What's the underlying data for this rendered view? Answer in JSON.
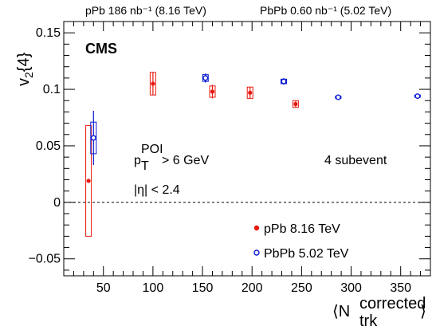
{
  "header": {
    "lumi_left": "pPb 186 nb⁻¹ (8.16 TeV)",
    "lumi_right": "PbPb 0.60 nb⁻¹ (5.02 TeV)",
    "experiment": "CMS"
  },
  "annotations": {
    "pt_main": "p",
    "pt_sub": "T",
    "pt_sup": "POI",
    "pt_rest": " > 6 GeV",
    "eta": "|η| < 2.4",
    "subevent": "4 subevent"
  },
  "colors": {
    "ppb": "#e8190f",
    "pbpb": "#0a1ad2",
    "axis": "#000000"
  },
  "chart_data": {
    "type": "scatter",
    "xlabel": "⟨N_trk^corrected⟩",
    "ylabel": "v2{4}",
    "xlim": [
      10,
      380
    ],
    "ylim": [
      -0.065,
      0.16
    ],
    "x_ticks": [
      50,
      100,
      150,
      200,
      250,
      300,
      350
    ],
    "y_ticks": [
      -0.05,
      0,
      0.05,
      0.1,
      0.15
    ],
    "y_tick_labels": [
      "−0.05",
      "0",
      "0.05",
      "0.1",
      "0.15"
    ],
    "zero_line": true,
    "legend_position": "bottom-right",
    "series": [
      {
        "name": "pPb 8.16 TeV",
        "marker": "filled-circle",
        "color": "#e8190f",
        "points": [
          {
            "x": 35,
            "y": 0.019,
            "stat": 0.0,
            "sys": 0.049
          },
          {
            "x": 100,
            "y": 0.105,
            "stat": 0.01,
            "sys": 0.01
          },
          {
            "x": 160,
            "y": 0.098,
            "stat": 0.006,
            "sys": 0.005
          },
          {
            "x": 198,
            "y": 0.097,
            "stat": 0.005,
            "sys": 0.005
          },
          {
            "x": 244,
            "y": 0.087,
            "stat": 0.003,
            "sys": 0.003
          }
        ]
      },
      {
        "name": "PbPb 5.02 TeV",
        "marker": "open-circle",
        "color": "#0a1ad2",
        "points": [
          {
            "x": 40,
            "y": 0.057,
            "stat": 0.024,
            "sys": 0.014
          },
          {
            "x": 153,
            "y": 0.11,
            "stat": 0.004,
            "sys": 0.003
          },
          {
            "x": 232,
            "y": 0.107,
            "stat": 0.003,
            "sys": 0.002
          },
          {
            "x": 287,
            "y": 0.093,
            "stat": 0.002,
            "sys": 0.001
          },
          {
            "x": 367,
            "y": 0.094,
            "stat": 0.001,
            "sys": 0.001
          }
        ]
      }
    ]
  }
}
